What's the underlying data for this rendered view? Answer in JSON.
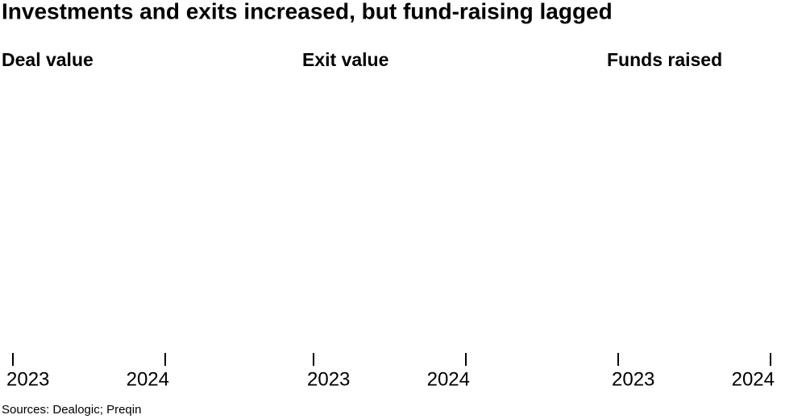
{
  "title": "Investments and exits increased, but fund-raising lagged",
  "source": "Sources: Dealogic; Preqin",
  "chart_data": [
    {
      "type": "bar",
      "title": "Deal value",
      "categories": [
        "2023",
        "2024"
      ]
    },
    {
      "type": "bar",
      "title": "Exit value",
      "categories": [
        "2023",
        "2024"
      ]
    },
    {
      "type": "bar",
      "title": "Funds raised",
      "categories": [
        "2023",
        "2024"
      ]
    }
  ]
}
